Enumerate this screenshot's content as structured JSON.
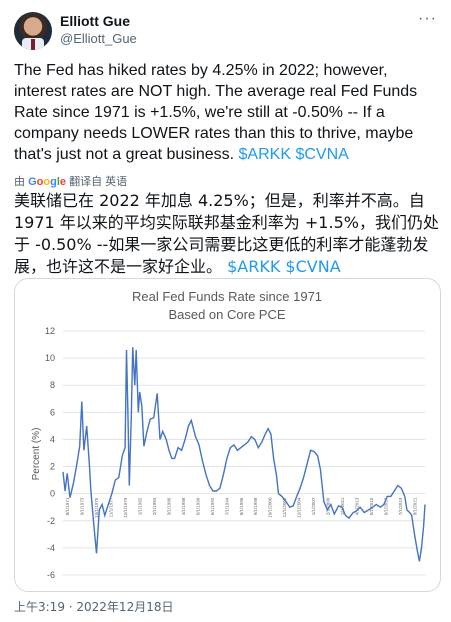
{
  "author": {
    "name": "Elliott Gue",
    "handle": "@Elliott_Gue"
  },
  "icons": {
    "avatar": "avatar-photo",
    "more": "more-icon"
  },
  "tweet": {
    "text": "The Fed has hiked rates by 4.25% in 2022; however, interest rates are NOT high. The average real Fed Funds Rate since 1971 is +1.5%, we're still at -0.50% -- If a company needs LOWER rates than this to thrive, maybe that's just not a great business.",
    "cashtags": "$ARKK $CVNA"
  },
  "translation": {
    "by_label": "由",
    "google": "Google",
    "label": "翻译自 英语",
    "text": "美联储已在 2022 年加息 4.25%；但是，利率并不高。自 1971 年以来的平均实际联邦基金利率为 +1.5%，我们仍处于 -0.50% --如果一家公司需要比这更低的利率才能蓬勃发展，也许这不是一家好企业。",
    "cashtags": "$ARKK $CVNA"
  },
  "timestamp": "上午3:19 · 2022年12月18日",
  "colors": {
    "line": "#4472c4",
    "link": "#1d9bf0",
    "muted": "#536471"
  },
  "chart_data": {
    "type": "line",
    "title": "Real Fed Funds Rate since 1971",
    "subtitle": "Based on Core PCE",
    "ylabel": "Percent (%)",
    "ylim": [
      -6,
      12
    ],
    "yticks": [
      -6,
      -4,
      -2,
      0,
      2,
      4,
      6,
      8,
      10,
      12
    ],
    "xlim": [
      1971,
      2022.9
    ],
    "series": [
      {
        "values": [
          [
            1971.0,
            1.6
          ],
          [
            1971.3,
            0.2
          ],
          [
            1971.6,
            1.5
          ],
          [
            1972.0,
            -0.3
          ],
          [
            1972.5,
            0.8
          ],
          [
            1973.0,
            2.2
          ],
          [
            1973.4,
            3.5
          ],
          [
            1973.7,
            6.8
          ],
          [
            1974.0,
            3.2
          ],
          [
            1974.4,
            5.0
          ],
          [
            1974.8,
            2.0
          ],
          [
            1975.0,
            0.2
          ],
          [
            1975.4,
            -2.2
          ],
          [
            1975.8,
            -4.4
          ],
          [
            1976.2,
            -1.2
          ],
          [
            1976.6,
            -0.8
          ],
          [
            1977.0,
            -1.6
          ],
          [
            1977.5,
            -0.8
          ],
          [
            1978.0,
            0.0
          ],
          [
            1978.5,
            1.0
          ],
          [
            1979.0,
            1.2
          ],
          [
            1979.5,
            2.8
          ],
          [
            1979.9,
            3.4
          ],
          [
            1980.1,
            10.6
          ],
          [
            1980.3,
            6.0
          ],
          [
            1980.5,
            0.6
          ],
          [
            1980.8,
            6.0
          ],
          [
            1981.0,
            10.8
          ],
          [
            1981.3,
            8.0
          ],
          [
            1981.5,
            10.6
          ],
          [
            1981.8,
            6.0
          ],
          [
            1982.0,
            7.5
          ],
          [
            1982.3,
            6.5
          ],
          [
            1982.6,
            3.5
          ],
          [
            1983.0,
            4.5
          ],
          [
            1983.5,
            5.5
          ],
          [
            1984.0,
            5.6
          ],
          [
            1984.5,
            7.4
          ],
          [
            1984.9,
            4.0
          ],
          [
            1985.3,
            4.6
          ],
          [
            1985.8,
            4.0
          ],
          [
            1986.2,
            3.2
          ],
          [
            1986.6,
            2.6
          ],
          [
            1987.0,
            2.6
          ],
          [
            1987.5,
            3.4
          ],
          [
            1988.0,
            3.2
          ],
          [
            1988.5,
            4.0
          ],
          [
            1989.0,
            5.0
          ],
          [
            1989.4,
            5.4
          ],
          [
            1990.0,
            4.2
          ],
          [
            1990.5,
            3.6
          ],
          [
            1991.0,
            2.4
          ],
          [
            1991.5,
            1.4
          ],
          [
            1992.0,
            0.6
          ],
          [
            1992.5,
            0.2
          ],
          [
            1993.0,
            0.2
          ],
          [
            1993.5,
            0.4
          ],
          [
            1994.0,
            1.4
          ],
          [
            1994.5,
            2.6
          ],
          [
            1995.0,
            3.4
          ],
          [
            1995.5,
            3.6
          ],
          [
            1996.0,
            3.2
          ],
          [
            1996.5,
            3.4
          ],
          [
            1997.0,
            3.6
          ],
          [
            1997.5,
            3.8
          ],
          [
            1998.0,
            4.2
          ],
          [
            1998.5,
            4.0
          ],
          [
            1999.0,
            3.4
          ],
          [
            1999.5,
            3.8
          ],
          [
            2000.0,
            4.4
          ],
          [
            2000.4,
            4.8
          ],
          [
            2000.8,
            4.4
          ],
          [
            2001.2,
            2.6
          ],
          [
            2001.6,
            1.4
          ],
          [
            2001.9,
            0.0
          ],
          [
            2002.4,
            -0.2
          ],
          [
            2003.0,
            -0.6
          ],
          [
            2003.5,
            -1.0
          ],
          [
            2004.0,
            -0.9
          ],
          [
            2004.5,
            -0.2
          ],
          [
            2005.0,
            0.4
          ],
          [
            2005.5,
            1.2
          ],
          [
            2006.0,
            2.2
          ],
          [
            2006.5,
            3.2
          ],
          [
            2007.0,
            3.1
          ],
          [
            2007.5,
            2.8
          ],
          [
            2007.9,
            1.8
          ],
          [
            2008.4,
            -0.6
          ],
          [
            2008.9,
            -1.2
          ],
          [
            2009.4,
            -0.8
          ],
          [
            2009.9,
            -1.5
          ],
          [
            2010.5,
            -0.9
          ],
          [
            2011.0,
            -1.0
          ],
          [
            2011.5,
            -1.6
          ],
          [
            2012.0,
            -1.8
          ],
          [
            2012.6,
            -1.4
          ],
          [
            2013.0,
            -1.3
          ],
          [
            2013.6,
            -1.0
          ],
          [
            2014.2,
            -1.4
          ],
          [
            2014.8,
            -1.2
          ],
          [
            2015.4,
            -1.0
          ],
          [
            2015.9,
            -0.8
          ],
          [
            2016.5,
            -1.0
          ],
          [
            2017.0,
            -0.8
          ],
          [
            2017.5,
            -0.2
          ],
          [
            2018.0,
            -0.2
          ],
          [
            2018.5,
            0.2
          ],
          [
            2019.0,
            0.6
          ],
          [
            2019.5,
            0.4
          ],
          [
            2020.0,
            -0.2
          ],
          [
            2020.3,
            -1.2
          ],
          [
            2020.7,
            -1.4
          ],
          [
            2021.0,
            -1.6
          ],
          [
            2021.4,
            -3.0
          ],
          [
            2021.8,
            -4.2
          ],
          [
            2022.1,
            -5.0
          ],
          [
            2022.4,
            -4.0
          ],
          [
            2022.7,
            -2.4
          ],
          [
            2022.9,
            -0.8
          ]
        ]
      }
    ],
    "xtick_labels": [
      "8/1/1971",
      "9/1/1973",
      "10/1/1975",
      "11/1/1977",
      "12/1/1979",
      "1/1/1982",
      "2/1/1984",
      "3/1/1986",
      "4/1/1988",
      "5/1/1990",
      "6/1/1992",
      "7/1/1994",
      "8/1/1996",
      "9/1/1998",
      "10/1/2000",
      "11/1/2002",
      "12/1/2004",
      "1/1/2007",
      "2/1/2009",
      "3/1/2011",
      "4/1/2013",
      "5/1/2015",
      "6/1/2017",
      "7/1/2019",
      "8/1/2021"
    ]
  }
}
